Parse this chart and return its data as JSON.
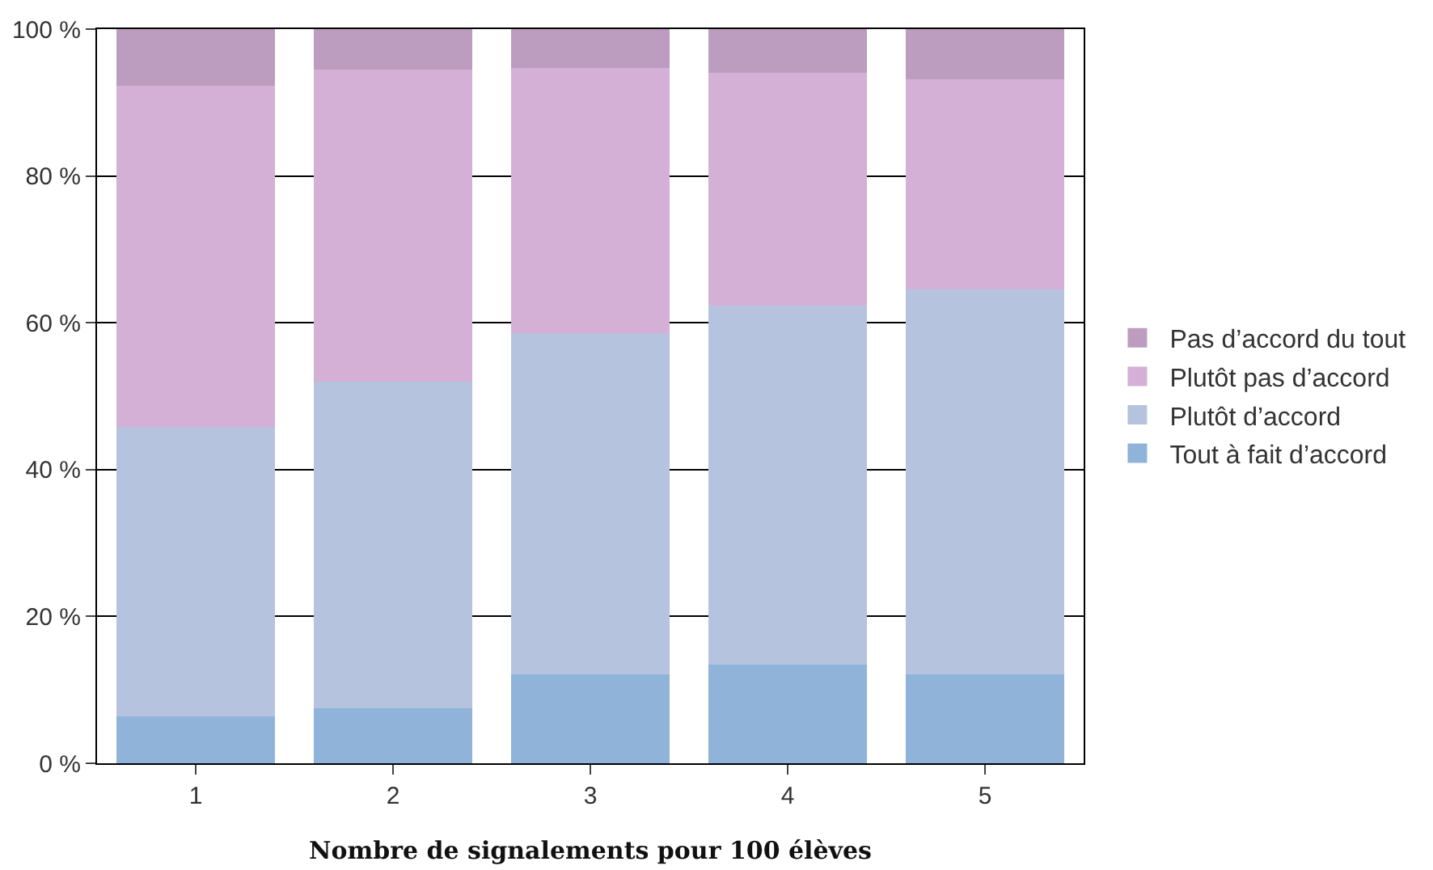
{
  "chart_data": {
    "type": "bar",
    "stacked": true,
    "xlabel": "Nombre de signalements pour 100 élèves",
    "categories": [
      "1",
      "2",
      "3",
      "4",
      "5"
    ],
    "series": [
      {
        "name": "Tout à fait d’accord",
        "color": "#8fb3d9",
        "values": [
          6.4,
          7.5,
          12.1,
          13.4,
          12.1
        ]
      },
      {
        "name": "Plutôt d’accord",
        "color": "#b5c3de",
        "values": [
          39.4,
          44.5,
          46.5,
          48.9,
          52.4
        ]
      },
      {
        "name": "Plutôt pas d’accord",
        "color": "#d4afd6",
        "values": [
          46.5,
          42.5,
          36.1,
          31.8,
          28.7
        ]
      },
      {
        "name": "Pas d’accord du tout",
        "color": "#bc9cbf",
        "values": [
          7.7,
          5.5,
          5.3,
          5.9,
          6.8
        ]
      }
    ],
    "ylim": [
      0,
      100
    ],
    "yticks": [
      {
        "value": 0,
        "label": "0 %"
      },
      {
        "value": 20,
        "label": "20 %"
      },
      {
        "value": 40,
        "label": "40 %"
      },
      {
        "value": 60,
        "label": "60 %"
      },
      {
        "value": 80,
        "label": "80 %"
      },
      {
        "value": 100,
        "label": "100 %"
      }
    ],
    "grid": "y",
    "legend": "right"
  }
}
